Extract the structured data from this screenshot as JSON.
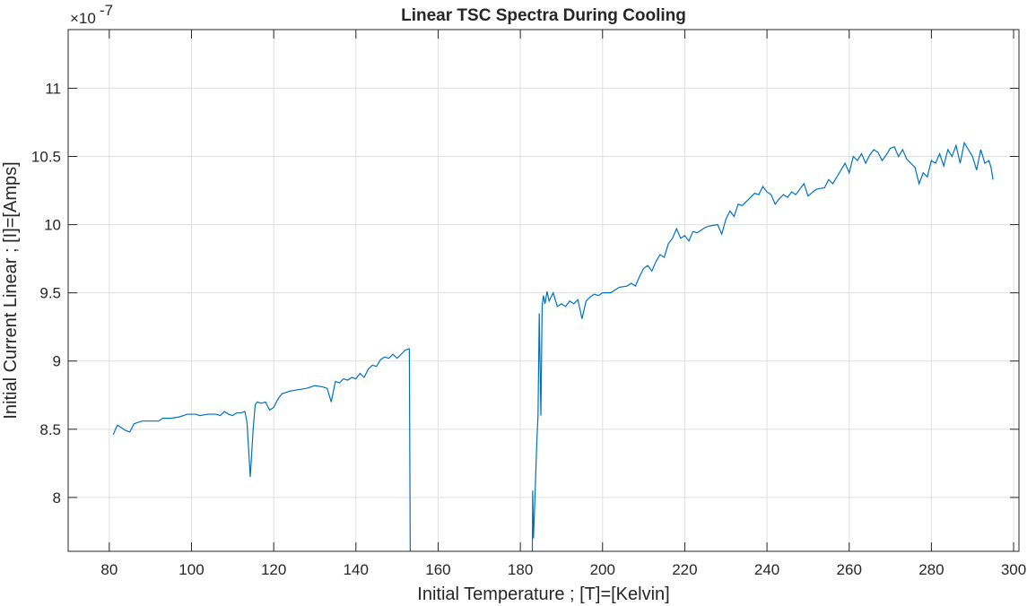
{
  "chart_data": {
    "type": "line",
    "title": "Linear TSC Spectra During Cooling",
    "x_label": "Initial Temperature ; [T]=[Kelvin]",
    "y_label": "Initial Current Linear ; [I]=[Amps]",
    "y_exponent": {
      "base": "×10",
      "power": "-7"
    },
    "color": "#0072bd",
    "grid": true,
    "xlim": [
      70,
      301.3
    ],
    "ylim": [
      7.605,
      11.43
    ],
    "xticks": [
      80,
      100,
      120,
      140,
      160,
      180,
      200,
      220,
      240,
      260,
      280,
      300
    ],
    "yticks": [
      8,
      8.5,
      9,
      9.5,
      10,
      10.5,
      11
    ],
    "x": [
      81,
      81.5,
      82,
      83,
      84,
      85,
      86,
      88,
      90,
      92,
      93,
      95,
      97,
      99,
      101,
      102,
      104,
      106,
      107,
      108,
      109,
      110,
      111,
      112,
      113,
      113.5,
      114.3,
      115,
      115.5,
      116,
      117,
      118,
      119,
      120,
      121,
      122,
      124,
      126,
      128,
      130,
      132,
      133,
      134,
      135,
      136,
      137,
      138,
      139,
      140,
      141,
      142,
      143,
      144,
      145,
      146,
      147,
      148,
      149,
      150,
      151,
      152,
      153,
      153.3,
      168,
      182.8,
      183,
      183.2,
      183.5,
      184,
      184.3,
      184.6,
      185,
      185.3,
      185.6,
      186,
      186.5,
      187,
      188,
      189,
      190,
      191,
      192,
      193,
      194,
      195,
      196,
      197,
      198,
      199,
      200,
      202,
      204,
      206,
      207,
      208,
      209,
      210,
      211,
      212,
      213,
      214,
      215,
      216,
      217,
      218,
      219,
      220,
      221,
      222,
      223,
      225,
      226,
      228,
      229,
      230,
      231,
      232,
      233,
      234,
      236,
      237,
      238,
      239,
      240,
      241,
      242,
      243,
      244,
      245,
      246,
      247,
      248,
      249,
      250,
      252,
      254,
      255,
      256,
      257,
      258,
      259,
      260,
      261,
      262,
      263,
      264,
      265,
      266,
      267,
      268,
      269,
      270,
      271,
      272,
      273,
      274,
      275,
      276,
      277,
      278,
      279,
      280,
      281,
      282,
      283,
      284,
      285,
      286,
      287,
      288,
      289,
      290,
      291,
      292,
      293,
      294,
      294.5,
      295
    ],
    "values": [
      8.46,
      8.5,
      8.53,
      8.51,
      8.49,
      8.48,
      8.54,
      8.56,
      8.56,
      8.56,
      8.58,
      8.58,
      8.59,
      8.61,
      8.61,
      8.6,
      8.61,
      8.61,
      8.6,
      8.63,
      8.61,
      8.6,
      8.62,
      8.62,
      8.63,
      8.55,
      8.15,
      8.5,
      8.68,
      8.7,
      8.69,
      8.7,
      8.64,
      8.66,
      8.72,
      8.76,
      8.78,
      8.79,
      8.8,
      8.82,
      8.81,
      8.8,
      8.7,
      8.85,
      8.84,
      8.87,
      8.86,
      8.88,
      8.87,
      8.91,
      8.88,
      8.94,
      8.97,
      8.96,
      9.01,
      9.03,
      9.02,
      9.05,
      9.02,
      9.05,
      9.08,
      9.09,
      7.0,
      null,
      7.0,
      8.05,
      7.7,
      7.95,
      8.4,
      8.6,
      9.35,
      8.6,
      9.4,
      9.48,
      9.42,
      9.51,
      9.44,
      9.5,
      9.4,
      9.42,
      9.4,
      9.44,
      9.42,
      9.45,
      9.31,
      9.44,
      9.47,
      9.49,
      9.48,
      9.5,
      9.5,
      9.54,
      9.55,
      9.57,
      9.55,
      9.62,
      9.68,
      9.7,
      9.66,
      9.73,
      9.78,
      9.76,
      9.86,
      9.9,
      9.97,
      9.9,
      9.92,
      9.88,
      9.95,
      9.94,
      9.98,
      9.99,
      10.0,
      9.93,
      10.04,
      10.1,
      10.06,
      10.15,
      10.14,
      10.2,
      10.23,
      10.22,
      10.28,
      10.24,
      10.22,
      10.15,
      10.19,
      10.22,
      10.2,
      10.24,
      10.22,
      10.26,
      10.3,
      10.21,
      10.26,
      10.27,
      10.33,
      10.3,
      10.35,
      10.4,
      10.45,
      10.38,
      10.5,
      10.47,
      10.52,
      10.45,
      10.51,
      10.55,
      10.53,
      10.47,
      10.51,
      10.56,
      10.57,
      10.5,
      10.55,
      10.48,
      10.45,
      10.42,
      10.3,
      10.38,
      10.35,
      10.47,
      10.45,
      10.52,
      10.43,
      10.55,
      10.5,
      10.58,
      10.45,
      10.6,
      10.55,
      10.5,
      10.4,
      10.55,
      10.45,
      10.47,
      10.42,
      10.33
    ]
  }
}
